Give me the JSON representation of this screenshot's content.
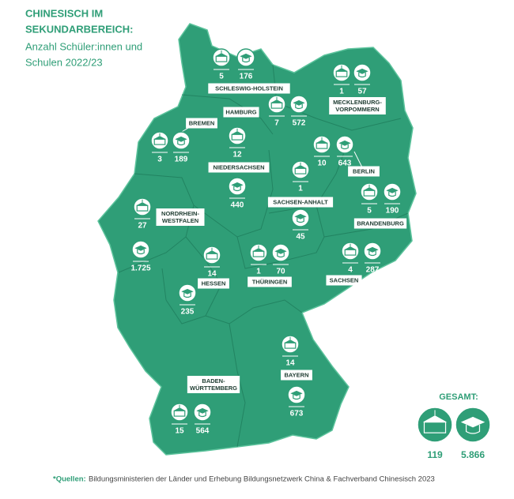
{
  "header": {
    "title_lines": [
      "CHINESISCH IM",
      "SEKUNDARBEREICH:"
    ],
    "subtitle_lines": [
      "Anzahl Schüler:innen und",
      "Schulen 2022/23"
    ]
  },
  "states": [
    {
      "name_lines": [
        "SCHLESWIG-HOLSTEIN"
      ],
      "schools": "5",
      "students": "176"
    },
    {
      "name_lines": [
        "HAMBURG"
      ],
      "schools": "7",
      "students": "572"
    },
    {
      "name_lines": [
        "MECKLENBURG-",
        "VORPOMMERN"
      ],
      "schools": "1",
      "students": "57"
    },
    {
      "name_lines": [
        "BREMEN"
      ],
      "schools": "3",
      "students": "189"
    },
    {
      "name_lines": [
        "NIEDERSACHSEN"
      ],
      "schools": "12",
      "students": "440"
    },
    {
      "name_lines": [
        "BERLIN"
      ],
      "schools": "10",
      "students": "643"
    },
    {
      "name_lines": [
        "SACHSEN-ANHALT"
      ],
      "schools": "1",
      "students": "45"
    },
    {
      "name_lines": [
        "BRANDENBURG"
      ],
      "schools": "5",
      "students": "190"
    },
    {
      "name_lines": [
        "NORDRHEIN-",
        "WESTFALEN"
      ],
      "schools": "27",
      "students": "1.725"
    },
    {
      "name_lines": [
        "SACHSEN"
      ],
      "schools": "4",
      "students": "287"
    },
    {
      "name_lines": [
        "THÜRINGEN"
      ],
      "schools": "1",
      "students": "70"
    },
    {
      "name_lines": [
        "HESSEN"
      ],
      "schools": "14",
      "students": "235"
    },
    {
      "name_lines": [
        "BAYERN"
      ],
      "schools": "14",
      "students": "673"
    },
    {
      "name_lines": [
        "BADEN-",
        "WÜRTTEMBERG"
      ],
      "schools": "15",
      "students": "564"
    }
  ],
  "total": {
    "label": "GESAMT:",
    "schools": "119",
    "students": "5.866"
  },
  "source": {
    "label": "*Quellen:",
    "text": "Bildungsministerien der Länder und Erhebung Bildungsnetzwerk China & Fachverband Chinesisch 2023"
  }
}
